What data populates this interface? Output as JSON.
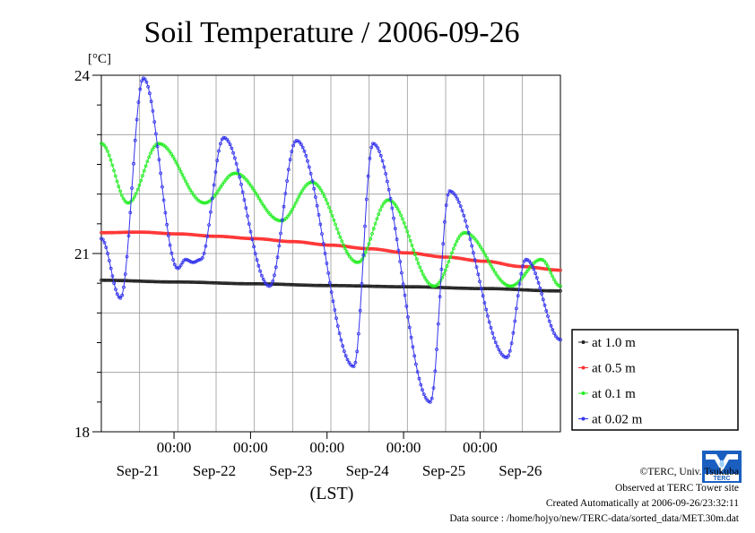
{
  "chart_data": {
    "type": "line",
    "title": "Soil Temperature / 2006-09-26",
    "ylabel": "[°C]",
    "xlabel": "(LST)",
    "ylim": [
      18,
      24
    ],
    "xlim_days": [
      0,
      6.0
    ],
    "y_major_ticks": [
      "24",
      "21",
      "18"
    ],
    "x_tick_labels": [
      "00:00",
      "00:00",
      "00:00",
      "00:00",
      "00:00"
    ],
    "x_date_labels": [
      "Sep-21",
      "Sep-22",
      "Sep-23",
      "Sep-24",
      "Sep-25",
      "Sep-26"
    ],
    "grid": true,
    "legend_position": "right",
    "series": [
      {
        "name": "at 1.0 m",
        "color": "#222222",
        "x": [
          0,
          1.0,
          2.0,
          3.0,
          4.0,
          5.0,
          6.0
        ],
        "y": [
          20.55,
          20.52,
          20.49,
          20.46,
          20.44,
          20.41,
          20.37
        ]
      },
      {
        "name": "at 0.5 m",
        "color": "#ff3030",
        "x": [
          0,
          0.5,
          1.0,
          1.5,
          2.0,
          2.5,
          3.0,
          3.5,
          4.0,
          4.5,
          5.0,
          5.5,
          6.0
        ],
        "y": [
          21.35,
          21.36,
          21.33,
          21.29,
          21.25,
          21.2,
          21.14,
          21.08,
          21.01,
          20.94,
          20.87,
          20.78,
          20.72
        ]
      },
      {
        "name": "at 0.1 m",
        "color": "#22ee22",
        "x": [
          0,
          0.35,
          0.75,
          1.35,
          1.75,
          2.35,
          2.75,
          3.35,
          3.75,
          4.35,
          4.75,
          5.35,
          5.75,
          6.0
        ],
        "y": [
          22.85,
          21.85,
          22.85,
          21.85,
          22.35,
          21.55,
          22.2,
          20.85,
          21.9,
          20.45,
          21.35,
          20.45,
          20.9,
          20.45
        ]
      },
      {
        "name": "at 0.02 m",
        "color": "#3333ee",
        "x": [
          0,
          0.25,
          0.55,
          1.0,
          1.1,
          1.2,
          1.3,
          1.6,
          2.2,
          2.55,
          3.3,
          3.55,
          4.3,
          4.55,
          5.3,
          5.55,
          6.0
        ],
        "y": [
          21.25,
          20.25,
          23.95,
          20.75,
          20.9,
          20.85,
          20.9,
          22.95,
          20.45,
          22.9,
          19.1,
          22.85,
          18.5,
          22.05,
          19.25,
          20.9,
          19.55
        ]
      }
    ]
  },
  "footer": {
    "copyright": "©TERC, Univ. Tsukuba",
    "observed": "Observed at TERC Tower site",
    "created": "Created Automatically at 2006-09-26/23:32:11",
    "source": "Data source : /home/hojyo/new/TERC-data/sorted_data/MET.30m.dat",
    "logo_text": "TERC"
  }
}
